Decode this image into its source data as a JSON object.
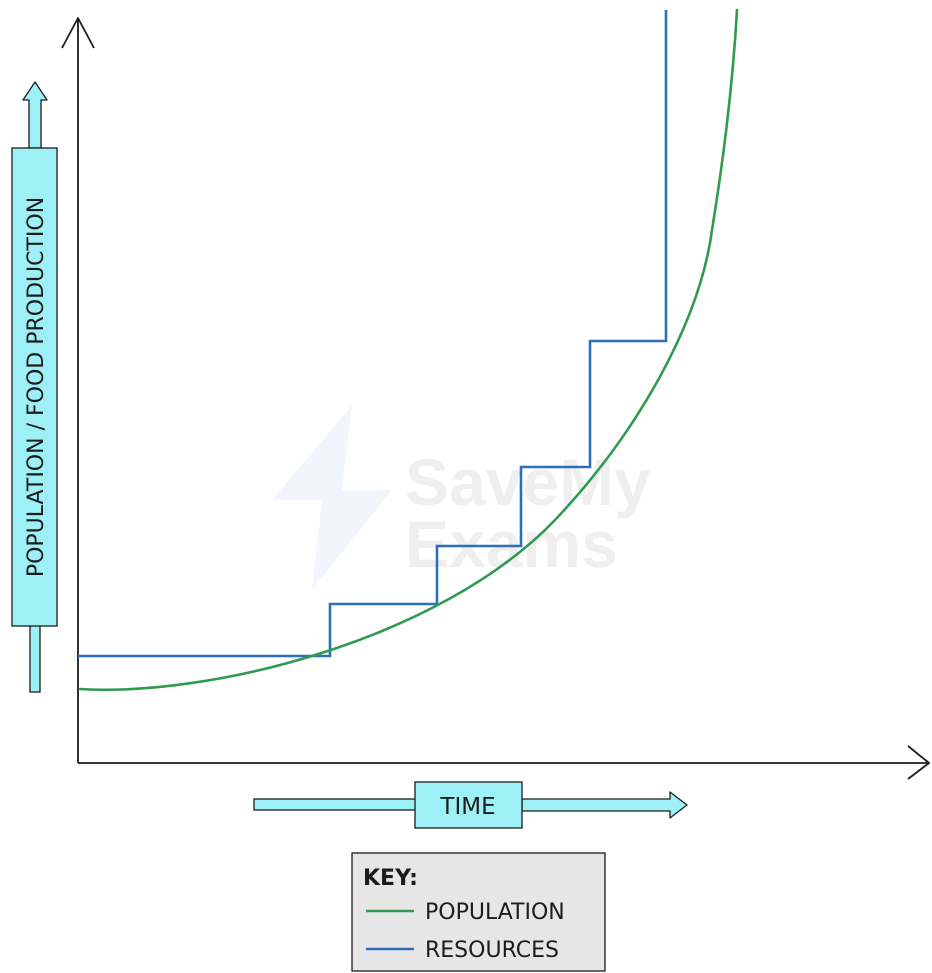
{
  "chart_data": {
    "type": "line",
    "title": "",
    "xlabel": "TIME",
    "ylabel": "POPULATION / FOOD PRODUCTION",
    "grid": false,
    "legend_placement": "bottom-center",
    "legend_title": "KEY:",
    "watermark_text": "SaveMy Exams",
    "series": [
      {
        "name": "POPULATION",
        "color": "#2e9b4f",
        "shape": "exponential"
      },
      {
        "name": "RESOURCES",
        "color": "#2f6fb8",
        "shape": "step"
      }
    ]
  },
  "colors": {
    "label_box_fill": "#9ef0f7",
    "legend_box_fill": "#e6e6e6",
    "axis": "#1c1c1c"
  }
}
